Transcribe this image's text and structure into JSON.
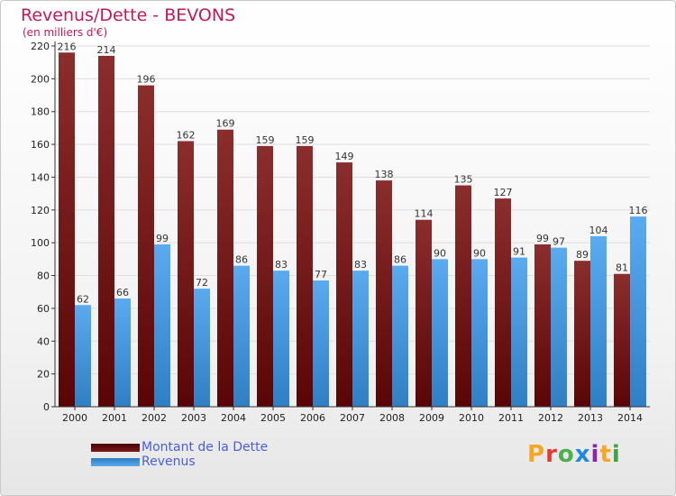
{
  "header": {
    "title": "Revenus/Dette - BEVONS",
    "subtitle": "(en milliers d'€)"
  },
  "legend": {
    "dette_label": "Montant de la Dette",
    "revenus_label": "Revenus"
  },
  "logo": {
    "text": "Proxiti",
    "colors": [
      "#f5a623",
      "#e53935",
      "#4caf50",
      "#1e88e5",
      "#8e24aa",
      "#f5a623",
      "#43a047"
    ]
  },
  "colors": {
    "dette_top": "#8b2d2d",
    "dette_bottom": "#5a0505",
    "revenus_top": "#5aaaf0",
    "revenus_bottom": "#2f7fc4",
    "title": "#c2185b",
    "grid": "#dddddd",
    "axis": "#333333"
  },
  "chart_data": {
    "type": "bar",
    "title": "Revenus/Dette - BEVONS",
    "subtitle": "(en milliers d'€)",
    "xlabel": "",
    "ylabel": "",
    "ylim": [
      0,
      220
    ],
    "yticks": [
      0,
      20,
      40,
      60,
      80,
      100,
      120,
      140,
      160,
      180,
      200,
      220
    ],
    "grid": true,
    "legend_position": "bottom-left",
    "categories": [
      "2000",
      "2001",
      "2002",
      "2003",
      "2004",
      "2005",
      "2006",
      "2007",
      "2008",
      "2009",
      "2010",
      "2011",
      "2012",
      "2013",
      "2014"
    ],
    "series": [
      {
        "name": "Montant de la Dette",
        "values": [
          216,
          214,
          196,
          162,
          169,
          159,
          159,
          149,
          138,
          114,
          135,
          127,
          99,
          89,
          81
        ]
      },
      {
        "name": "Revenus",
        "values": [
          62,
          66,
          99,
          72,
          86,
          83,
          77,
          83,
          86,
          90,
          90,
          91,
          97,
          104,
          116
        ]
      }
    ]
  }
}
